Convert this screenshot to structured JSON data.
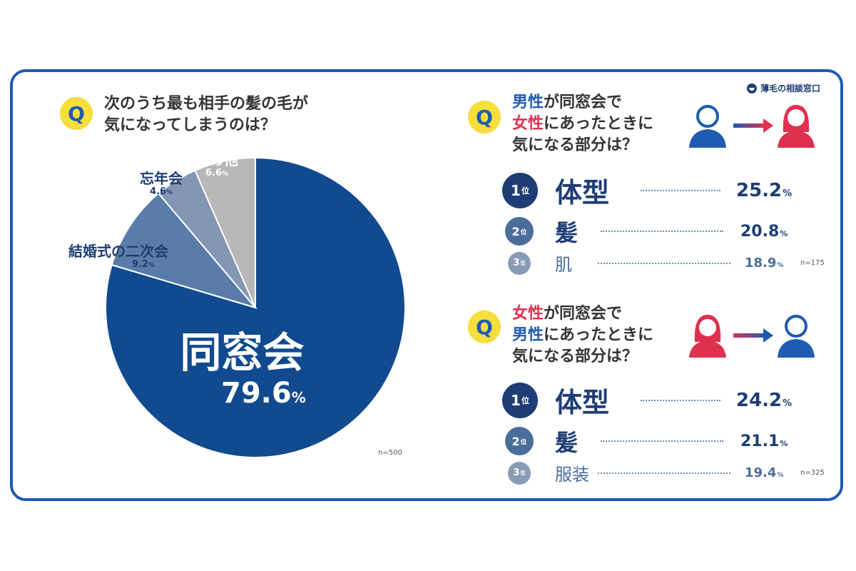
{
  "brand": "薄毛の相談窓口",
  "q_badge": "Q",
  "left": {
    "question_lines": [
      "次のうち最も相手の髪の毛が",
      "気になってしまうのは？"
    ],
    "n": "n=500"
  },
  "chart_data": [
    {
      "type": "pie",
      "title": "次のうち最も相手の髪の毛が気になってしまうのは？",
      "slices": [
        {
          "label": "同窓会",
          "value": 79.6,
          "color": "#114a8f"
        },
        {
          "label": "結婚式の二次会",
          "value": 9.2,
          "color": "#597da8"
        },
        {
          "label": "忘年会",
          "value": 4.6,
          "color": "#8396b3"
        },
        {
          "label": "その他",
          "value": 6.6,
          "color": "#b7b7b7"
        }
      ],
      "unit": "%",
      "n": "n=500"
    },
    {
      "type": "table",
      "title": "男性が同窓会で女性にあったときに気になる部分は？",
      "rows": [
        {
          "rank": "1",
          "label": "体型",
          "value": 25.2
        },
        {
          "rank": "2",
          "label": "髪",
          "value": 20.8
        },
        {
          "rank": "3",
          "label": "肌",
          "value": 18.9
        }
      ],
      "unit": "%",
      "n": "n=175"
    },
    {
      "type": "table",
      "title": "女性が同窓会で男性にあったときに気になる部分は？",
      "rows": [
        {
          "rank": "1",
          "label": "体型",
          "value": 24.2
        },
        {
          "rank": "2",
          "label": "髪",
          "value": 21.1
        },
        {
          "rank": "3",
          "label": "服装",
          "value": 19.4
        }
      ],
      "unit": "%",
      "n": "n=325"
    }
  ],
  "right_top": {
    "line1": {
      "a": "男性",
      "b": "が同窓会で"
    },
    "line2": {
      "a": "女性",
      "b": "にあったときに"
    },
    "line3": "気になる部分は？",
    "rank_suffix": "位",
    "percent_sign": "%"
  },
  "right_bottom": {
    "line1": {
      "a": "女性",
      "b": "が同窓会で"
    },
    "line2": {
      "a": "男性",
      "b": "にあったときに"
    },
    "line3": "気になる部分は？"
  },
  "colors": {
    "blue": "#1e5bb3",
    "red": "#e0304f",
    "navy": "#1d3d74",
    "yellow": "#f6de3c"
  }
}
